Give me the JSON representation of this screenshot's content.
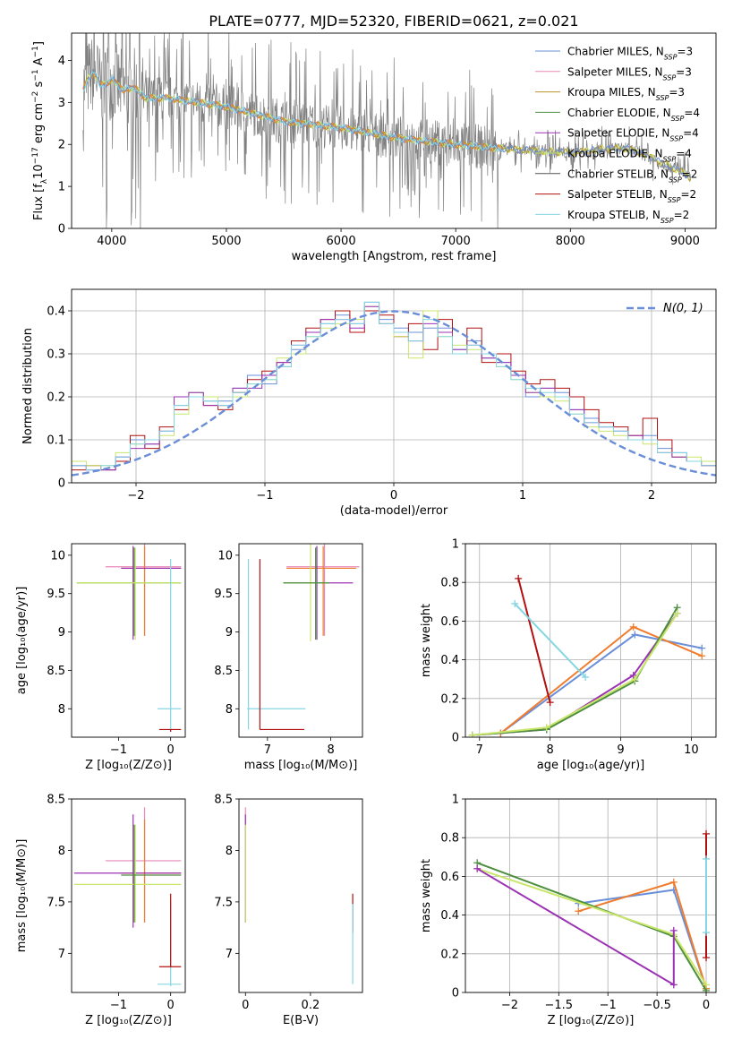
{
  "figure": {
    "title": "PLATE=0777, MJD=52320, FIBERID=0621, z=0.021"
  },
  "colors": {
    "chabrier_miles": "#6a8fd8",
    "salpeter_miles": "#e889b9",
    "kroupa_miles": "#b8932e",
    "chabrier_elodie": "#4d8f3f",
    "salpeter_elodie": "#9b32b4",
    "kroupa_elodie": "#c9e66a",
    "chabrier_stelib": "#555555",
    "salpeter_stelib": "#b01010",
    "kroupa_stelib": "#86d6e2",
    "data": "#808080",
    "orange": "#f07c2e",
    "normal": "#6a8fd8"
  },
  "chart_data": [
    {
      "id": "spectrum",
      "type": "line",
      "xlabel": "wavelength [Angstrom, rest frame]",
      "ylabel": "Flux [f_λ 10^-17 erg cm^-2 s^-1 A^-1]",
      "xlim": [
        3650,
        9270
      ],
      "ylim": [
        0,
        4.65
      ],
      "xticks": [
        4000,
        5000,
        6000,
        7000,
        8000,
        9000
      ],
      "yticks": [
        0,
        1,
        2,
        3,
        4
      ],
      "continuum": {
        "x": [
          3750,
          3800,
          3850,
          3900,
          3950,
          4000,
          4100,
          4200,
          4300,
          4500,
          5000,
          5500,
          6000,
          6500,
          7000,
          7400,
          8000,
          8300,
          8500,
          8700,
          9000,
          9050
        ],
        "y": [
          3.3,
          3.6,
          3.7,
          3.4,
          3.45,
          3.55,
          3.3,
          3.35,
          3.1,
          3.1,
          2.9,
          2.55,
          2.4,
          2.15,
          2.0,
          1.9,
          1.8,
          1.9,
          1.9,
          1.7,
          1.3,
          1.2
        ]
      },
      "legend": [
        {
          "key": "chabrier_miles",
          "label": "Chabrier MILES, N",
          "sub": "SSP",
          "tail": "=3"
        },
        {
          "key": "salpeter_miles",
          "label": "Salpeter MILES, N",
          "sub": "SSP",
          "tail": "=3"
        },
        {
          "key": "kroupa_miles",
          "label": "Kroupa MILES, N",
          "sub": "SSP",
          "tail": "=3"
        },
        {
          "key": "chabrier_elodie",
          "label": "Chabrier ELODIE, N",
          "sub": "SSP",
          "tail": "=4"
        },
        {
          "key": "salpeter_elodie",
          "label": "Salpeter ELODIE, N",
          "sub": "SSP",
          "tail": "=4"
        },
        {
          "key": "kroupa_elodie",
          "label": "Kroupa ELODIE, N",
          "sub": "SSP",
          "tail": "=4"
        },
        {
          "key": "chabrier_stelib",
          "label": "Chabrier STELIB, N",
          "sub": "SSP",
          "tail": "=2"
        },
        {
          "key": "salpeter_stelib",
          "label": "Salpeter STELIB, N",
          "sub": "SSP",
          "tail": "=2"
        },
        {
          "key": "kroupa_stelib",
          "label": "Kroupa STELIB, N",
          "sub": "SSP",
          "tail": "=2"
        }
      ]
    },
    {
      "id": "residuals",
      "type": "bar",
      "xlabel": "(data-model)/error",
      "ylabel": "Normed distribution",
      "xlim": [
        -2.5,
        2.5
      ],
      "ylim": [
        0,
        0.45
      ],
      "xticks": [
        -2,
        -1,
        0,
        1,
        2
      ],
      "yticks": [
        0.0,
        0.1,
        0.2,
        0.3,
        0.4
      ],
      "grid": true,
      "normal_label": "N(0, 1)",
      "series": [
        {
          "key": "chabrier_miles",
          "values": [
            0.04,
            0.03,
            0.03,
            0.06,
            0.1,
            0.09,
            0.12,
            0.18,
            0.21,
            0.19,
            0.19,
            0.22,
            0.25,
            0.23,
            0.27,
            0.31,
            0.35,
            0.37,
            0.39,
            0.37,
            0.42,
            0.38,
            0.36,
            0.35,
            0.36,
            0.36,
            0.31,
            0.33,
            0.29,
            0.28,
            0.25,
            0.2,
            0.22,
            0.21,
            0.17,
            0.15,
            0.13,
            0.12,
            0.1,
            0.11,
            0.08,
            0.07,
            0.05,
            0.05
          ]
        },
        {
          "key": "salpeter_stelib",
          "values": [
            0.03,
            0.04,
            0.03,
            0.05,
            0.11,
            0.08,
            0.13,
            0.17,
            0.2,
            0.18,
            0.17,
            0.21,
            0.24,
            0.26,
            0.28,
            0.33,
            0.36,
            0.38,
            0.4,
            0.35,
            0.4,
            0.39,
            0.34,
            0.37,
            0.31,
            0.38,
            0.3,
            0.36,
            0.28,
            0.3,
            0.26,
            0.23,
            0.24,
            0.22,
            0.2,
            0.17,
            0.14,
            0.13,
            0.11,
            0.15,
            0.1,
            0.06,
            0.05,
            0.04
          ]
        },
        {
          "key": "kroupa_elodie",
          "values": [
            0.05,
            0.04,
            0.04,
            0.07,
            0.09,
            0.1,
            0.11,
            0.16,
            0.21,
            0.2,
            0.18,
            0.2,
            0.23,
            0.24,
            0.29,
            0.3,
            0.34,
            0.36,
            0.37,
            0.38,
            0.41,
            0.37,
            0.34,
            0.29,
            0.4,
            0.34,
            0.32,
            0.31,
            0.3,
            0.27,
            0.24,
            0.21,
            0.2,
            0.19,
            0.16,
            0.13,
            0.12,
            0.11,
            0.1,
            0.09,
            0.07,
            0.06,
            0.06,
            0.05
          ]
        },
        {
          "key": "salpeter_elodie",
          "values": [
            0.04,
            0.03,
            0.03,
            0.06,
            0.08,
            0.09,
            0.12,
            0.2,
            0.21,
            0.18,
            0.18,
            0.22,
            0.22,
            0.25,
            0.28,
            0.32,
            0.35,
            0.38,
            0.38,
            0.36,
            0.41,
            0.37,
            0.35,
            0.33,
            0.37,
            0.35,
            0.31,
            0.32,
            0.29,
            0.28,
            0.25,
            0.21,
            0.22,
            0.2,
            0.17,
            0.14,
            0.13,
            0.12,
            0.11,
            0.1,
            0.07,
            0.06,
            0.05,
            0.04
          ]
        },
        {
          "key": "kroupa_stelib",
          "values": [
            0.04,
            0.03,
            0.04,
            0.06,
            0.09,
            0.1,
            0.12,
            0.18,
            0.2,
            0.19,
            0.18,
            0.21,
            0.23,
            0.24,
            0.27,
            0.32,
            0.34,
            0.37,
            0.38,
            0.37,
            0.42,
            0.37,
            0.35,
            0.33,
            0.38,
            0.34,
            0.3,
            0.32,
            0.3,
            0.27,
            0.24,
            0.22,
            0.21,
            0.2,
            0.16,
            0.14,
            0.13,
            0.12,
            0.1,
            0.1,
            0.07,
            0.07,
            0.05,
            0.04
          ]
        }
      ]
    },
    {
      "id": "age-vs-z",
      "type": "scatter",
      "xlabel": "Z [log₁₀(Z/Z⊙)]",
      "ylabel": "age  [log₁₀(age/yr)]",
      "xlim": [
        -1.9,
        0.28
      ],
      "ylim": [
        7.63,
        10.15
      ],
      "xticks": [
        -1,
        0
      ],
      "yticks": [
        8.0,
        8.5,
        9.0,
        9.5,
        10.0
      ],
      "crosses": [
        {
          "key": "salpeter_miles",
          "x": -0.5,
          "y": 9.85,
          "x0": -1.25,
          "x1": 0.2,
          "y0": 8.95,
          "y1": 10.15
        },
        {
          "key": "orange",
          "x": -0.5,
          "y": 9.83,
          "x0": -0.95,
          "x1": 0.2,
          "y0": 8.95,
          "y1": 10.12
        },
        {
          "key": "salpeter_elodie",
          "x": -0.72,
          "y": 9.83,
          "x0": -0.95,
          "x1": 0.2,
          "y0": 8.9,
          "y1": 10.12
        },
        {
          "key": "chabrier_elodie",
          "x": -0.7,
          "y": 9.64,
          "x0": -1.8,
          "x1": 0.2,
          "y0": 8.95,
          "y1": 10.1
        },
        {
          "key": "kroupa_elodie",
          "x": -0.68,
          "y": 9.64,
          "x0": -1.8,
          "x1": 0.2,
          "y0": 8.9,
          "y1": 10.1
        },
        {
          "key": "kroupa_stelib",
          "x": 0.0,
          "y": 8.0,
          "x0": -0.25,
          "x1": 0.2,
          "y0": 7.73,
          "y1": 9.95
        },
        {
          "key": "salpeter_stelib",
          "x": 0.0,
          "y": 7.73,
          "x0": -0.22,
          "x1": 0.2,
          "y0": 7.7,
          "y1": 7.73
        }
      ]
    },
    {
      "id": "age-vs-mass",
      "type": "scatter",
      "xlabel": "mass [log₁₀(M/M⊙)]",
      "ylabel": "",
      "xlim": [
        6.55,
        8.5
      ],
      "ylim": [
        7.63,
        10.15
      ],
      "xticks": [
        7,
        8
      ],
      "yticks": [
        8.0,
        8.5,
        9.0,
        9.5,
        10.0
      ],
      "crosses": [
        {
          "key": "salpeter_miles",
          "x": 7.9,
          "y": 9.85,
          "x0": 7.3,
          "x1": 8.45,
          "y0": 8.95,
          "y1": 10.15
        },
        {
          "key": "orange",
          "x": 7.88,
          "y": 9.83,
          "x0": 7.3,
          "x1": 8.4,
          "y0": 8.95,
          "y1": 10.12
        },
        {
          "key": "salpeter_elodie",
          "x": 7.78,
          "y": 9.64,
          "x0": 7.25,
          "x1": 8.35,
          "y0": 8.9,
          "y1": 10.12
        },
        {
          "key": "kroupa_elodie",
          "x": 7.68,
          "y": 9.64,
          "x0": 7.25,
          "x1": 7.98,
          "y0": 8.88,
          "y1": 10.15
        },
        {
          "key": "chabrier_elodie",
          "x": 7.76,
          "y": 9.64,
          "x0": 7.25,
          "x1": 7.98,
          "y0": 8.9,
          "y1": 10.1
        },
        {
          "key": "kroupa_stelib",
          "x": 6.7,
          "y": 8.0,
          "x0": 6.68,
          "x1": 7.6,
          "y0": 7.73,
          "y1": 9.95
        },
        {
          "key": "salpeter_stelib",
          "x": 6.88,
          "y": 7.73,
          "x0": 6.88,
          "x1": 7.58,
          "y0": 7.73,
          "y1": 9.95
        }
      ]
    },
    {
      "id": "weight-vs-age",
      "type": "line",
      "xlabel": "age  [log₁₀(age/yr)]",
      "ylabel": "mass weight",
      "xlim": [
        6.8,
        10.35
      ],
      "ylim": [
        0,
        1
      ],
      "xticks": [
        7,
        8,
        9,
        10
      ],
      "yticks": [
        0.0,
        0.2,
        0.4,
        0.6,
        0.8,
        1.0
      ],
      "grid": true,
      "series": [
        {
          "key": "chabrier_miles",
          "x": [
            7.3,
            9.2,
            10.15
          ],
          "y": [
            0.02,
            0.53,
            0.46
          ]
        },
        {
          "key": "orange",
          "x": [
            7.3,
            9.18,
            10.15
          ],
          "y": [
            0.02,
            0.57,
            0.42
          ]
        },
        {
          "key": "salpeter_elodie",
          "x": [
            6.9,
            7.95,
            9.18,
            9.8
          ],
          "y": [
            0.01,
            0.04,
            0.32,
            0.64
          ]
        },
        {
          "key": "chabrier_elodie",
          "x": [
            6.9,
            7.95,
            9.2,
            9.8
          ],
          "y": [
            0.01,
            0.04,
            0.29,
            0.67
          ]
        },
        {
          "key": "kroupa_elodie",
          "x": [
            6.9,
            7.95,
            9.2,
            9.8
          ],
          "y": [
            0.01,
            0.05,
            0.3,
            0.64
          ]
        },
        {
          "key": "salpeter_stelib",
          "x": [
            7.55,
            8.0
          ],
          "y": [
            0.82,
            0.18
          ]
        },
        {
          "key": "kroupa_stelib",
          "x": [
            7.5,
            8.5
          ],
          "y": [
            0.69,
            0.31
          ]
        }
      ]
    },
    {
      "id": "mass-vs-z",
      "type": "scatter",
      "xlabel": "Z [log₁₀(Z/Z⊙)]",
      "ylabel": "mass [log₁₀(M/M⊙)]",
      "xlim": [
        -1.9,
        0.28
      ],
      "ylim": [
        6.62,
        8.5
      ],
      "xticks": [
        -1,
        0
      ],
      "yticks": [
        7.0,
        7.5,
        8.0,
        8.5
      ],
      "crosses": [
        {
          "key": "salpeter_miles",
          "x": -0.5,
          "y": 7.9,
          "x0": -1.25,
          "x1": 0.2,
          "y0": 7.3,
          "y1": 8.42
        },
        {
          "key": "orange",
          "x": -0.5,
          "y": 7.78,
          "x0": -0.95,
          "x1": 0.2,
          "y0": 7.3,
          "y1": 8.3
        },
        {
          "key": "salpeter_elodie",
          "x": -0.72,
          "y": 7.78,
          "x0": -1.85,
          "x1": 0.2,
          "y0": 7.25,
          "y1": 8.35
        },
        {
          "key": "kroupa_elodie",
          "x": -0.68,
          "y": 7.67,
          "x0": -1.85,
          "x1": 0.2,
          "y0": 7.3,
          "y1": 8.25
        },
        {
          "key": "chabrier_elodie",
          "x": -0.7,
          "y": 7.76,
          "x0": -0.95,
          "x1": 0.2,
          "y0": 7.3,
          "y1": 8.25
        },
        {
          "key": "kroupa_stelib",
          "x": 0.0,
          "y": 6.7,
          "x0": -0.25,
          "x1": 0.2,
          "y0": 6.68,
          "y1": 7.5
        },
        {
          "key": "salpeter_stelib",
          "x": 0.0,
          "y": 6.87,
          "x0": -0.22,
          "x1": 0.2,
          "y0": 6.87,
          "y1": 7.58
        }
      ]
    },
    {
      "id": "mass-vs-ebv",
      "type": "scatter",
      "xlabel": "E(B-V)",
      "ylabel": "",
      "xlim": [
        -0.02,
        0.36
      ],
      "ylim": [
        6.62,
        8.5
      ],
      "xticks": [
        0.0,
        0.2
      ],
      "yticks": [
        7.0,
        7.5,
        8.0,
        8.5
      ],
      "crosses": [
        {
          "key": "salpeter_miles",
          "x": 0.0,
          "y": 7.9,
          "x0": 0.0,
          "x1": 0.0,
          "y0": 7.3,
          "y1": 8.42
        },
        {
          "key": "salpeter_elodie",
          "x": 0.0,
          "y": 7.9,
          "x0": 0.0,
          "x1": 0.0,
          "y0": 7.3,
          "y1": 8.35
        },
        {
          "key": "kroupa_elodie",
          "x": 0.0,
          "y": 7.8,
          "x0": 0.0,
          "x1": 0.0,
          "y0": 7.3,
          "y1": 8.25
        },
        {
          "key": "salpeter_stelib",
          "x": 0.33,
          "y": 7.5,
          "x0": 0.33,
          "x1": 0.33,
          "y0": 7.2,
          "y1": 7.58
        },
        {
          "key": "kroupa_stelib",
          "x": 0.33,
          "y": 7.1,
          "x0": 0.33,
          "x1": 0.33,
          "y0": 6.7,
          "y1": 7.48
        }
      ]
    },
    {
      "id": "weight-vs-z",
      "type": "line",
      "xlabel": "Z [log₁₀(Z/Z⊙)]",
      "ylabel": "mass weight",
      "xlim": [
        -2.45,
        0.1
      ],
      "ylim": [
        0,
        1
      ],
      "xticks": [
        -2.0,
        -1.5,
        -1.0,
        -0.5,
        0.0
      ],
      "yticks": [
        0.0,
        0.2,
        0.4,
        0.6,
        0.8,
        1.0
      ],
      "grid": true,
      "series": [
        {
          "key": "chabrier_miles",
          "x": [
            -1.3,
            -0.33,
            0.0
          ],
          "y": [
            0.46,
            0.53,
            0.02
          ]
        },
        {
          "key": "orange",
          "x": [
            -1.3,
            -0.33,
            0.0
          ],
          "y": [
            0.42,
            0.57,
            0.02
          ]
        },
        {
          "key": "chabrier_elodie",
          "x": [
            -2.33,
            -0.33,
            0.0
          ],
          "y": [
            0.67,
            0.29,
            0.01
          ]
        },
        {
          "key": "kroupa_elodie",
          "x": [
            -2.33,
            -0.33,
            0.0
          ],
          "y": [
            0.64,
            0.3,
            0.04
          ]
        },
        {
          "key": "salpeter_elodie",
          "x": [
            -2.33,
            -0.33,
            -0.33
          ],
          "y": [
            0.64,
            0.04,
            0.32
          ]
        },
        {
          "key": "salpeter_stelib",
          "x": [
            0.0,
            0.0
          ],
          "y": [
            0.82,
            0.18
          ]
        },
        {
          "key": "kroupa_stelib",
          "x": [
            0.0,
            0.0
          ],
          "y": [
            0.69,
            0.31
          ]
        }
      ]
    }
  ]
}
